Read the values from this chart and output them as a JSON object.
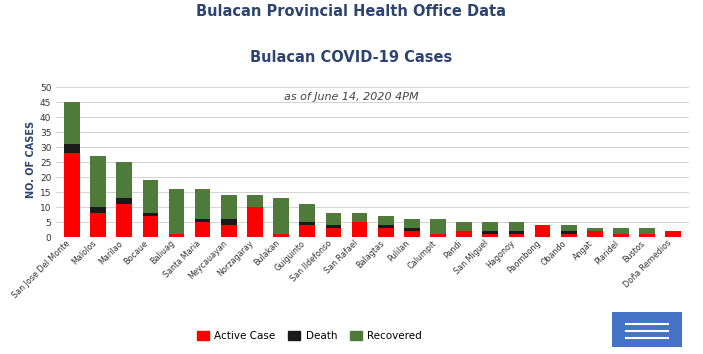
{
  "title1": "Bulacan Provincial Health Office Data",
  "title2": "Bulacan COVID-19 Cases",
  "title3": "as of June 14, 2020 4PM",
  "ylabel": "NO. OF CASES",
  "categories": [
    "San Jose Del Monte",
    "Malolos",
    "Marilao",
    "Bocaue",
    "Baliuag",
    "Santa Maria",
    "Meycauayan",
    "Norzagaray",
    "Bulakan",
    "Guiguinto",
    "San Ildefonso",
    "San Rafael",
    "Balagtas",
    "Pulilan",
    "Calumpit",
    "Pandi",
    "San Miguel",
    "Hagonoy",
    "Paombong",
    "Obando",
    "Angat",
    "Plaridel",
    "Bustos",
    "Doña Remedios"
  ],
  "active": [
    28,
    8,
    11,
    7,
    1,
    5,
    4,
    10,
    1,
    4,
    3,
    5,
    3,
    2,
    1,
    2,
    1,
    1,
    4,
    1,
    2,
    1,
    1,
    2
  ],
  "death": [
    3,
    2,
    2,
    1,
    0,
    1,
    2,
    0,
    0,
    1,
    1,
    0,
    1,
    1,
    0,
    0,
    1,
    1,
    0,
    1,
    0,
    0,
    0,
    0
  ],
  "recovered": [
    14,
    17,
    12,
    11,
    15,
    10,
    8,
    4,
    12,
    6,
    4,
    3,
    3,
    3,
    5,
    3,
    3,
    3,
    0,
    2,
    1,
    2,
    2,
    0
  ],
  "color_active": "#ff0000",
  "color_death": "#1a1a1a",
  "color_recovered": "#4e7a3a",
  "title_color": "#2e4470",
  "date_color": "#444444",
  "ylabel_color": "#2e4470",
  "ylim": [
    0,
    52
  ],
  "yticks": [
    0,
    5,
    10,
    15,
    20,
    25,
    30,
    35,
    40,
    45,
    50
  ],
  "background_color": "#ffffff",
  "grid_color": "#cccccc"
}
